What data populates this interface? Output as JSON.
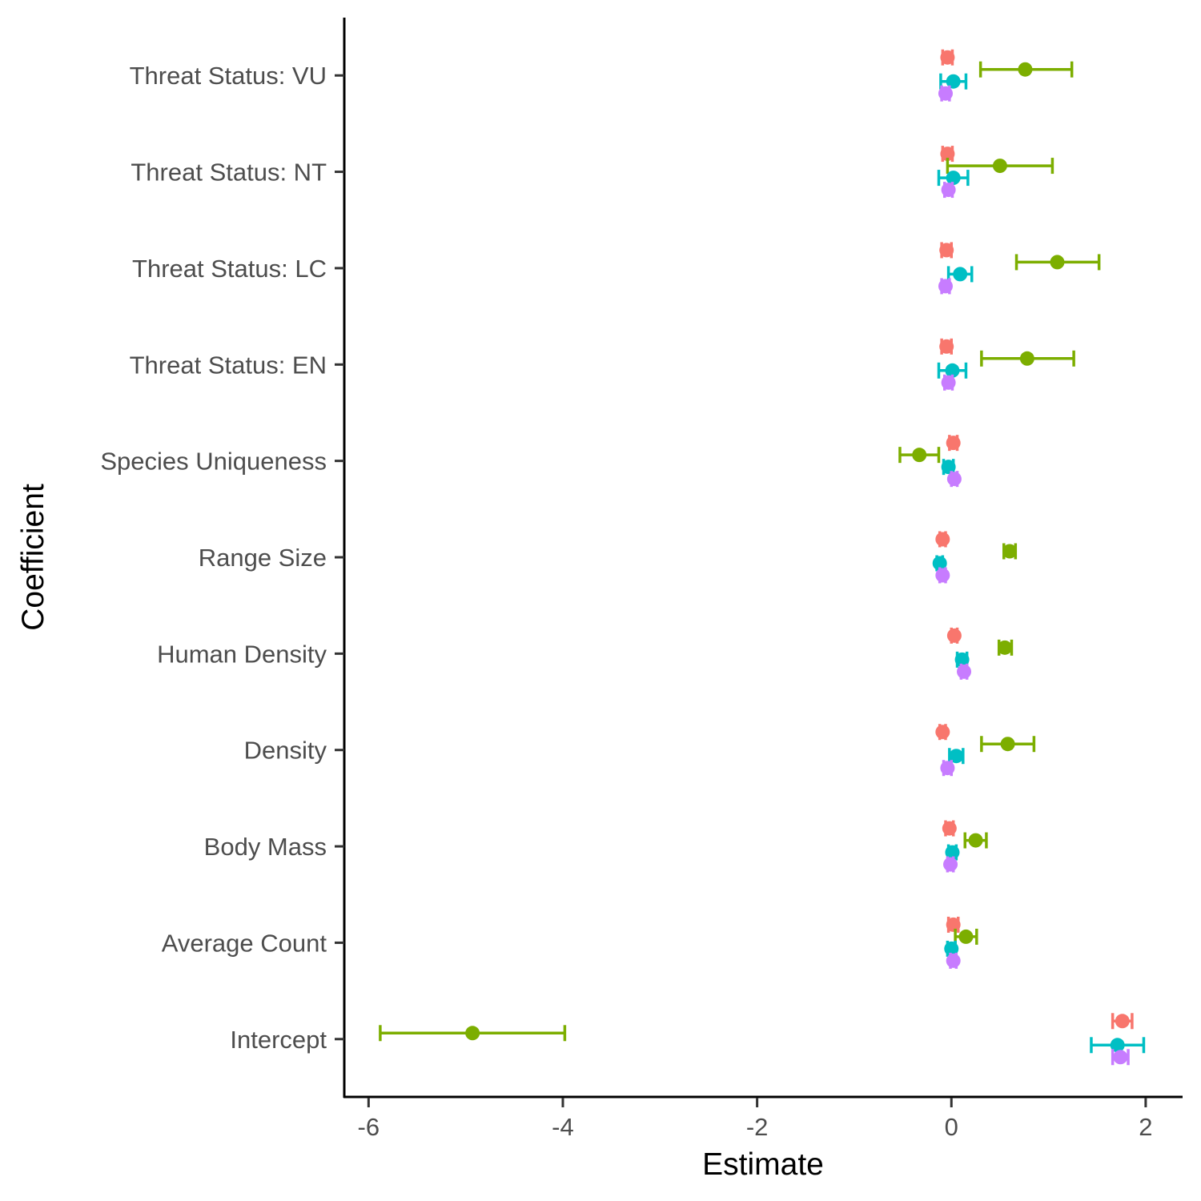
{
  "chart_data": {
    "type": "scatter",
    "subtype": "coefficient-plot-with-error-bars",
    "xlabel": "Estimate",
    "ylabel": "Coefficient",
    "xlim": [
      -6.25,
      2.38
    ],
    "xticks": [
      -6,
      -4,
      -2,
      0,
      2
    ],
    "xtick_labels": [
      "-6",
      "-4",
      "-2",
      "0",
      "2"
    ],
    "categories": [
      "Intercept",
      "Average Count",
      "Body Mass",
      "Density",
      "Human Density",
      "Range Size",
      "Species Uniqueness",
      "Threat Status: EN",
      "Threat Status: LC",
      "Threat Status: NT",
      "Threat Status: VU"
    ],
    "grid": false,
    "legend": "none",
    "series": [
      {
        "color": "#F8766D",
        "estimate": [
          1.76,
          0.02,
          -0.02,
          -0.09,
          0.03,
          -0.09,
          0.02,
          -0.05,
          -0.05,
          -0.04,
          -0.04
        ],
        "lower": [
          1.66,
          -0.03,
          -0.06,
          -0.12,
          0.0,
          -0.12,
          -0.02,
          -0.1,
          -0.1,
          -0.09,
          -0.09
        ],
        "upper": [
          1.86,
          0.07,
          0.02,
          -0.06,
          0.06,
          -0.06,
          0.06,
          0.0,
          0.0,
          0.01,
          0.01
        ]
      },
      {
        "color": "#7CAE00",
        "estimate": [
          -4.93,
          0.15,
          0.25,
          0.58,
          0.55,
          0.6,
          -0.33,
          0.78,
          1.09,
          0.5,
          0.76
        ],
        "lower": [
          -5.88,
          0.04,
          0.14,
          0.31,
          0.49,
          0.54,
          -0.53,
          0.31,
          0.67,
          -0.04,
          0.3
        ],
        "upper": [
          -3.98,
          0.26,
          0.36,
          0.85,
          0.62,
          0.66,
          -0.13,
          1.26,
          1.52,
          1.04,
          1.24
        ]
      },
      {
        "color": "#00BFC4",
        "estimate": [
          1.71,
          0.0,
          0.01,
          0.05,
          0.11,
          -0.12,
          -0.03,
          0.01,
          0.09,
          0.02,
          0.02
        ],
        "lower": [
          1.44,
          -0.04,
          -0.03,
          -0.02,
          0.06,
          -0.15,
          -0.08,
          -0.13,
          -0.03,
          -0.13,
          -0.11
        ],
        "upper": [
          1.98,
          0.04,
          0.05,
          0.12,
          0.16,
          -0.09,
          0.02,
          0.15,
          0.21,
          0.17,
          0.15
        ]
      },
      {
        "color": "#C77CFF",
        "estimate": [
          1.74,
          0.02,
          -0.01,
          -0.04,
          0.13,
          -0.09,
          0.03,
          -0.03,
          -0.06,
          -0.03,
          -0.06
        ],
        "lower": [
          1.66,
          -0.01,
          -0.04,
          -0.08,
          0.1,
          -0.12,
          0.0,
          -0.07,
          -0.1,
          -0.07,
          -0.1
        ],
        "upper": [
          1.82,
          0.05,
          0.02,
          0.0,
          0.16,
          -0.06,
          0.06,
          0.01,
          -0.02,
          0.01,
          -0.02
        ]
      }
    ]
  }
}
